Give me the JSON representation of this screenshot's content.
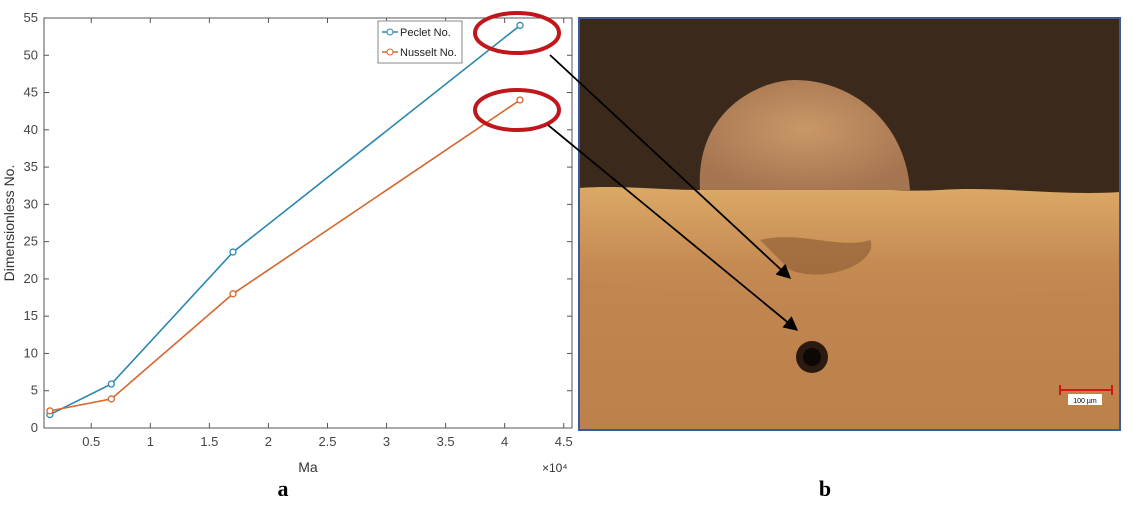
{
  "chart_data": {
    "type": "line",
    "xlabel": "Ma",
    "ylabel": "Dimensionless No.",
    "x_offset_text": "×10⁴",
    "x": [
      0.15,
      0.67,
      1.7,
      4.13
    ],
    "series": [
      {
        "name": "Peclet No.",
        "color": "#2b88b0",
        "values": [
          1.8,
          5.9,
          23.6,
          54
        ]
      },
      {
        "name": "Nusselt No.",
        "color": "#d4672d",
        "values": [
          2.3,
          3.9,
          18,
          44
        ]
      }
    ],
    "xlim": [
      0.1,
      4.57
    ],
    "ylim": [
      0,
      55
    ],
    "xticks": [
      0.5,
      1,
      1.5,
      2,
      2.5,
      3,
      3.5,
      4,
      4.5
    ],
    "yticks": [
      0,
      5,
      10,
      15,
      20,
      25,
      30,
      35,
      40,
      45,
      50,
      55
    ],
    "legend": "top-right"
  },
  "panels": [
    "a",
    "b"
  ],
  "image": {
    "scale_bar_label": "100 µm"
  }
}
